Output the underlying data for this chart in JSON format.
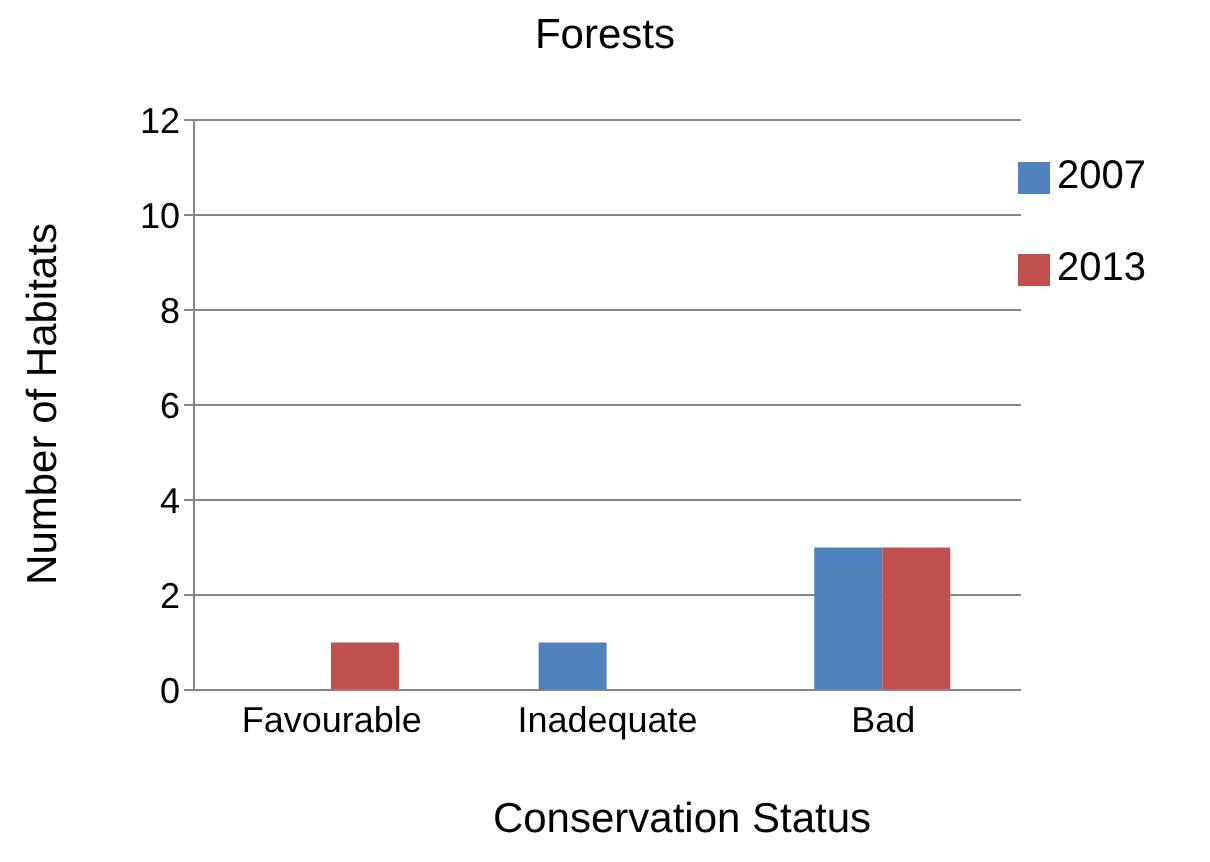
{
  "chart_data": {
    "type": "bar",
    "title": "Forests",
    "xlabel": "Conservation Status",
    "ylabel": "Number of Habitats",
    "categories": [
      "Favourable",
      "Inadequate",
      "Bad"
    ],
    "series": [
      {
        "name": "2007",
        "color": "#4f81bd",
        "values": [
          0,
          1,
          3
        ]
      },
      {
        "name": "2013",
        "color": "#c0504d",
        "values": [
          1,
          0,
          3
        ]
      }
    ],
    "ylim": [
      0,
      12
    ],
    "yticks": [
      0,
      2,
      4,
      6,
      8,
      10,
      12
    ],
    "grid": "y",
    "legend": "top right"
  }
}
